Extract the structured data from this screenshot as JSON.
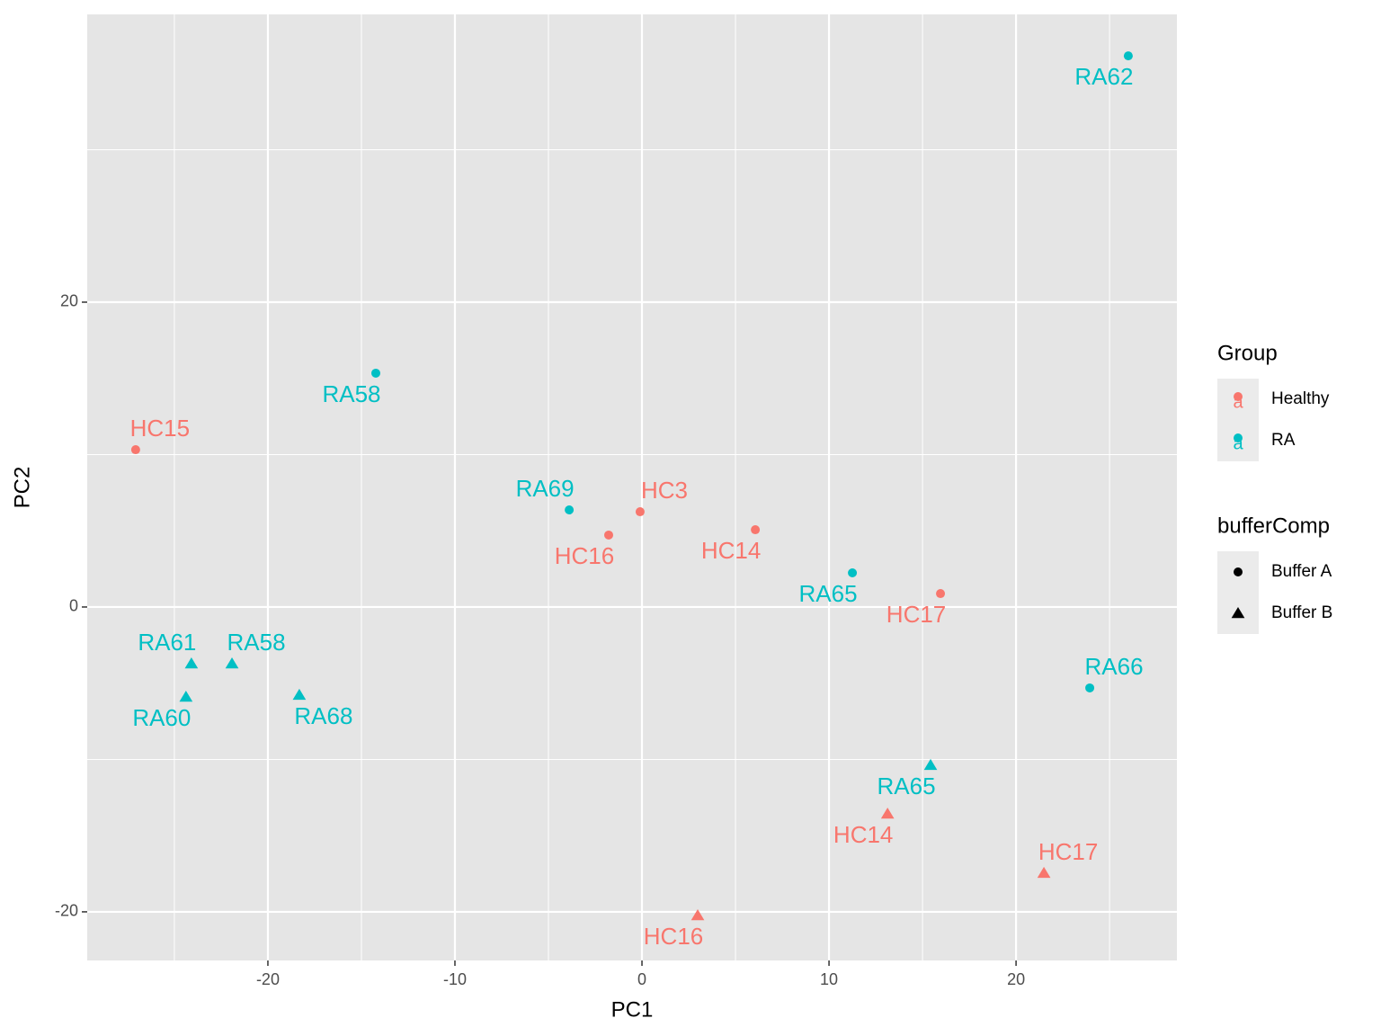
{
  "chart_data": {
    "type": "scatter",
    "x_label": "PC1",
    "y_label": "PC2",
    "xlim": [
      -29.66,
      28.6
    ],
    "ylim": [
      -23.19,
      38.88
    ],
    "xticks": [
      -20,
      -10,
      0,
      10,
      20
    ],
    "yticks": [
      -20,
      0,
      20
    ],
    "grid": true,
    "legend_position": "right",
    "group_legend": {
      "title": "Group",
      "key_text": "a"
    },
    "shape_legend": {
      "title": "bufferComp",
      "entries": [
        "Buffer A",
        "Buffer B"
      ]
    },
    "series": [
      {
        "name": "Healthy",
        "color": "#f8766d",
        "labels": [
          "HC15",
          "HC3",
          "HC16",
          "HC14",
          "HC17",
          "HC14",
          "HC17",
          "HC16"
        ],
        "shapes": [
          "Buffer A",
          "Buffer A",
          "Buffer A",
          "Buffer A",
          "Buffer A",
          "Buffer B",
          "Buffer B",
          "Buffer B"
        ],
        "x": [
          -27.07,
          -0.1,
          -1.78,
          6.06,
          15.96,
          13.13,
          21.49,
          2.98
        ],
        "values": [
          10.32,
          6.25,
          4.72,
          5.07,
          0.88,
          -13.57,
          -17.46,
          -20.24
        ]
      },
      {
        "name": "RA",
        "color": "#00bfc4",
        "labels": [
          "RA62",
          "RA58",
          "RA69",
          "RA65",
          "RA66",
          "RA61",
          "RA58",
          "RA60",
          "RA68",
          "RA65"
        ],
        "shapes": [
          "Buffer A",
          "Buffer A",
          "Buffer A",
          "Buffer A",
          "Buffer A",
          "Buffer B",
          "Buffer B",
          "Buffer B",
          "Buffer B",
          "Buffer B"
        ],
        "x": [
          26.0,
          -14.23,
          -3.89,
          11.25,
          23.94,
          -24.09,
          -21.92,
          -24.38,
          -18.32,
          15.43
        ],
        "values": [
          36.16,
          15.34,
          6.37,
          2.24,
          -5.31,
          -3.72,
          -3.72,
          -5.9,
          -5.78,
          -10.38
        ]
      }
    ]
  }
}
